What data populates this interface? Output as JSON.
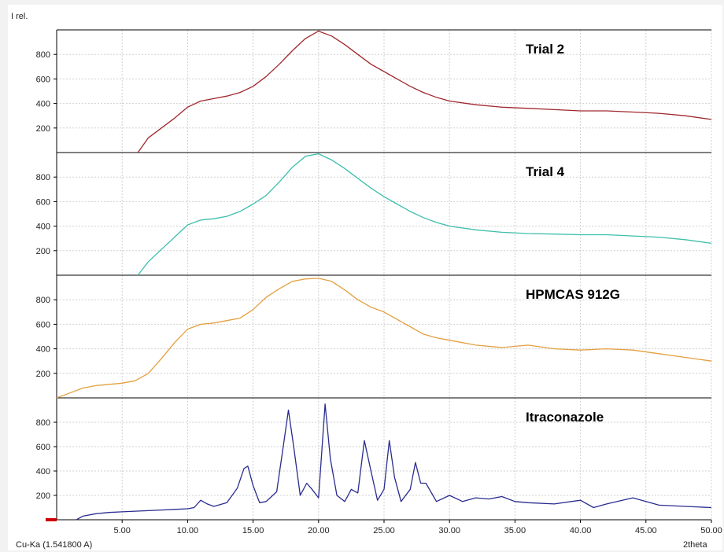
{
  "chart_data": {
    "type": "line",
    "ylabel": "I rel.",
    "xlabel": "2theta",
    "source_label": "Cu-Ka (1.541800 A)",
    "xlim": [
      0,
      50
    ],
    "ylim": [
      0,
      1000
    ],
    "x_ticks": [
      5,
      10,
      15,
      20,
      25,
      30,
      35,
      40,
      45,
      50
    ],
    "x_tick_labels": [
      "5.00",
      "10.00",
      "15.00",
      "20.00",
      "25.00",
      "30.00",
      "35.00",
      "40.00",
      "45.00",
      "50.00"
    ],
    "y_ticks": [
      200,
      400,
      600,
      800
    ],
    "y_tick_labels": [
      "200",
      "400",
      "600",
      "800"
    ],
    "grid": true,
    "series": [
      {
        "name": "Trial 2",
        "color": "#a0282d",
        "x": [
          6.2,
          7,
          8,
          9,
          10,
          11,
          12,
          13,
          14,
          15,
          16,
          17,
          18,
          19,
          20,
          21,
          22,
          23,
          24,
          25,
          26,
          27,
          28,
          29,
          30,
          32,
          34,
          36,
          38,
          40,
          42,
          44,
          46,
          48,
          50
        ],
        "y": [
          0,
          120,
          200,
          280,
          370,
          420,
          440,
          460,
          490,
          540,
          620,
          720,
          830,
          930,
          990,
          950,
          880,
          800,
          720,
          660,
          600,
          540,
          490,
          450,
          420,
          390,
          370,
          360,
          350,
          340,
          340,
          330,
          320,
          300,
          270
        ]
      },
      {
        "name": "Trial 4",
        "color": "#3dbfab",
        "x": [
          6.2,
          7,
          8,
          9,
          10,
          11,
          12,
          13,
          14,
          15,
          16,
          17,
          18,
          19,
          20,
          21,
          22,
          23,
          24,
          25,
          26,
          27,
          28,
          29,
          30,
          32,
          34,
          36,
          38,
          40,
          42,
          44,
          46,
          48,
          50
        ],
        "y": [
          0,
          110,
          210,
          310,
          410,
          450,
          460,
          480,
          520,
          580,
          650,
          760,
          880,
          970,
          990,
          940,
          870,
          790,
          710,
          640,
          580,
          520,
          470,
          430,
          400,
          370,
          350,
          340,
          335,
          330,
          330,
          320,
          310,
          290,
          260
        ]
      },
      {
        "name": "HPMCAS 912G",
        "color": "#e3a040",
        "x": [
          0,
          1,
          2,
          3,
          4,
          5,
          6,
          7,
          8,
          9,
          10,
          11,
          12,
          13,
          14,
          15,
          16,
          17,
          18,
          19,
          20,
          21,
          22,
          23,
          24,
          25,
          26,
          27,
          28,
          29,
          30,
          32,
          34,
          36,
          38,
          40,
          42,
          44,
          46,
          48,
          50
        ],
        "y": [
          0,
          40,
          80,
          100,
          110,
          120,
          140,
          200,
          320,
          450,
          560,
          600,
          610,
          630,
          650,
          720,
          820,
          890,
          950,
          970,
          975,
          950,
          880,
          800,
          740,
          700,
          640,
          580,
          520,
          490,
          470,
          430,
          410,
          430,
          400,
          390,
          400,
          390,
          360,
          330,
          300
        ]
      },
      {
        "name": "Itraconazole",
        "color": "#2a2c8f",
        "x": [
          1.5,
          2,
          3,
          4,
          5,
          6,
          7,
          8,
          9,
          10,
          10.5,
          11,
          11.5,
          12,
          13,
          13.8,
          14.3,
          14.6,
          15,
          15.5,
          16,
          16.8,
          17.3,
          17.7,
          18.1,
          18.6,
          19.1,
          19.5,
          20,
          20.5,
          20.9,
          21.4,
          22,
          22.5,
          23,
          23.5,
          24,
          24.5,
          25,
          25.4,
          25.8,
          26.3,
          27,
          27.4,
          27.8,
          28.2,
          29,
          30,
          31,
          32,
          33,
          34,
          35,
          36,
          38,
          40,
          41,
          42,
          44,
          45,
          46,
          48,
          50
        ],
        "y": [
          0,
          30,
          50,
          60,
          65,
          70,
          75,
          80,
          85,
          90,
          100,
          160,
          130,
          110,
          140,
          260,
          420,
          440,
          280,
          140,
          150,
          230,
          600,
          900,
          600,
          200,
          300,
          250,
          180,
          950,
          500,
          200,
          150,
          250,
          220,
          650,
          400,
          160,
          250,
          650,
          350,
          150,
          250,
          470,
          300,
          300,
          150,
          200,
          150,
          180,
          170,
          190,
          150,
          140,
          130,
          160,
          100,
          130,
          180,
          150,
          120,
          110,
          100
        ]
      }
    ]
  }
}
